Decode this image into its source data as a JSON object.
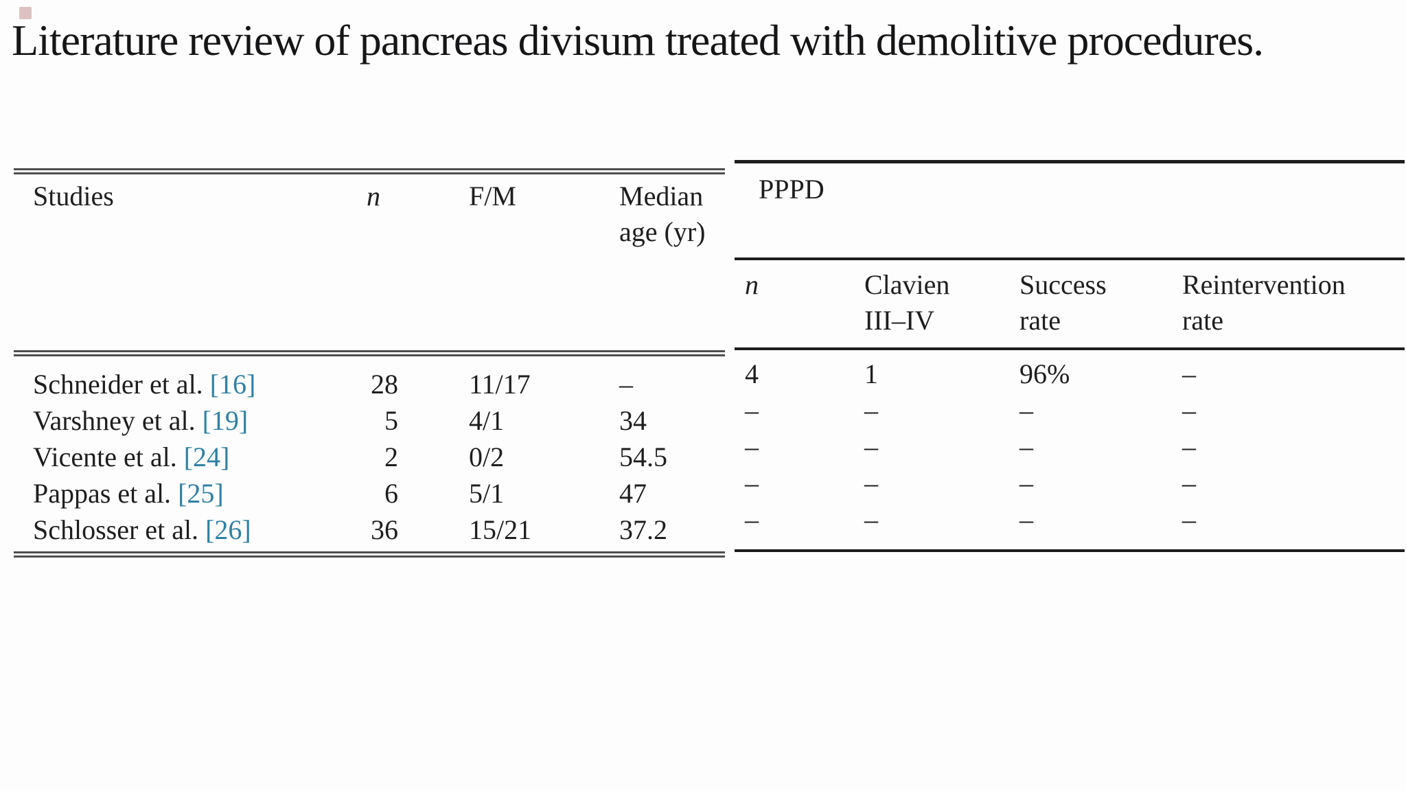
{
  "title": "Literature review of pancreas divisum treated with demolitive procedures.",
  "left_table": {
    "col_studies": "Studies",
    "col_n": "n",
    "col_fm": "F/M",
    "col_median_1": "Median",
    "col_median_2": "age (yr)",
    "rows": [
      {
        "study": "Schneider et al.",
        "ref": "[16]",
        "n": "28",
        "fm": "11/17",
        "median": "–"
      },
      {
        "study": "Varshney et al.",
        "ref": "[19]",
        "n": "5",
        "fm": "4/1",
        "median": "34"
      },
      {
        "study": "Vicente et al.",
        "ref": "[24]",
        "n": "2",
        "fm": "0/2",
        "median": "54.5"
      },
      {
        "study": "Pappas et al.",
        "ref": "[25]",
        "n": "6",
        "fm": "5/1",
        "median": "47"
      },
      {
        "study": "Schlosser et al.",
        "ref": "[26]",
        "n": "36",
        "fm": "15/21",
        "median": "37.2"
      }
    ]
  },
  "right_table": {
    "group_header": "PPPD",
    "col_n": "n",
    "col_clavien_1": "Clavien",
    "col_clavien_2": "III–IV",
    "col_success_1": "Success",
    "col_success_2": "rate",
    "col_reintervention_1": "Reintervention",
    "col_reintervention_2": "rate",
    "rows": [
      {
        "n": "4",
        "clavien": "1",
        "success": "96%",
        "reintervention": "–"
      },
      {
        "n": "–",
        "clavien": "–",
        "success": "–",
        "reintervention": "–"
      },
      {
        "n": "–",
        "clavien": "–",
        "success": "–",
        "reintervention": "–"
      },
      {
        "n": "–",
        "clavien": "–",
        "success": "–",
        "reintervention": "–"
      },
      {
        "n": "–",
        "clavien": "–",
        "success": "–",
        "reintervention": "–"
      }
    ]
  },
  "colors": {
    "text": "#1e1e20",
    "citation_link": "#2f80a3",
    "rule_gray": "#4e4e50",
    "rule_black": "#1d1d1f"
  }
}
